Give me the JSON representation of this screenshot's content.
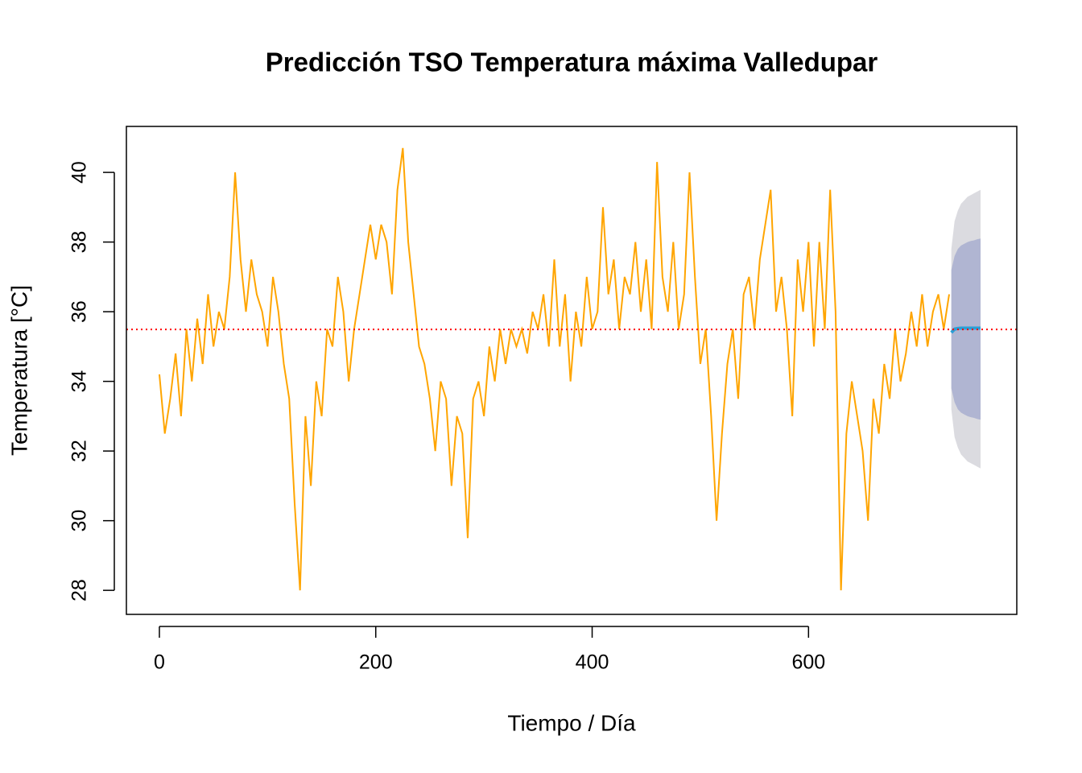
{
  "chart_data": {
    "type": "line",
    "title": "Predicción TSO Temperatura máxima Valledupar",
    "xlabel": "Tiempo / Día",
    "ylabel": "Temperatura [°C]",
    "xlim": [
      -30.5,
      792.5
    ],
    "ylim": [
      27.31,
      41.32
    ],
    "xticks": [
      0,
      200,
      400,
      600
    ],
    "yticks": [
      28,
      30,
      32,
      34,
      36,
      38,
      40
    ],
    "color": "#FFA500",
    "x": [
      0,
      5,
      10,
      15,
      20,
      25,
      30,
      35,
      40,
      45,
      50,
      55,
      60,
      65,
      70,
      75,
      80,
      85,
      90,
      95,
      100,
      105,
      110,
      115,
      120,
      125,
      130,
      135,
      140,
      145,
      150,
      155,
      160,
      165,
      170,
      175,
      180,
      185,
      190,
      195,
      200,
      205,
      210,
      215,
      220,
      225,
      230,
      235,
      240,
      245,
      250,
      255,
      260,
      265,
      270,
      275,
      280,
      285,
      290,
      295,
      300,
      305,
      310,
      315,
      320,
      325,
      330,
      335,
      340,
      345,
      350,
      355,
      360,
      365,
      370,
      375,
      380,
      385,
      390,
      395,
      400,
      405,
      410,
      415,
      420,
      425,
      430,
      435,
      440,
      445,
      450,
      455,
      460,
      465,
      470,
      475,
      480,
      485,
      490,
      495,
      500,
      505,
      510,
      515,
      520,
      525,
      530,
      535,
      540,
      545,
      550,
      555,
      560,
      565,
      570,
      575,
      580,
      585,
      590,
      595,
      600,
      605,
      610,
      615,
      620,
      625,
      630,
      635,
      640,
      645,
      650,
      655,
      660,
      665,
      670,
      675,
      680,
      685,
      690,
      695,
      700,
      705,
      710,
      715,
      720,
      725,
      730
    ],
    "values": [
      34.2,
      32.5,
      33.5,
      34.8,
      33.0,
      35.5,
      34.0,
      35.8,
      34.5,
      36.5,
      35.0,
      36.0,
      35.5,
      37.0,
      40.0,
      37.5,
      36.0,
      37.5,
      36.5,
      36.0,
      35.0,
      37.0,
      36.0,
      34.5,
      33.5,
      30.5,
      28.0,
      33.0,
      31.0,
      34.0,
      33.0,
      35.5,
      35.0,
      37.0,
      36.0,
      34.0,
      35.5,
      36.5,
      37.5,
      38.5,
      37.5,
      38.5,
      38.0,
      36.5,
      39.5,
      40.7,
      38.0,
      36.5,
      35.0,
      34.5,
      33.5,
      32.0,
      34.0,
      33.5,
      31.0,
      33.0,
      32.5,
      29.5,
      33.5,
      34.0,
      33.0,
      35.0,
      34.0,
      35.5,
      34.5,
      35.5,
      35.0,
      35.5,
      34.8,
      36.0,
      35.5,
      36.5,
      35.0,
      37.5,
      35.0,
      36.5,
      34.0,
      36.0,
      35.0,
      37.0,
      35.5,
      36.0,
      39.0,
      36.5,
      37.5,
      35.5,
      37.0,
      36.5,
      38.0,
      36.0,
      37.5,
      35.5,
      40.3,
      37.0,
      36.0,
      38.0,
      35.5,
      36.5,
      40.0,
      37.0,
      34.5,
      35.5,
      33.0,
      30.0,
      32.5,
      34.5,
      35.5,
      33.5,
      36.5,
      37.0,
      35.5,
      37.5,
      38.5,
      39.5,
      36.0,
      37.0,
      35.5,
      33.0,
      37.5,
      36.0,
      38.0,
      35.0,
      38.0,
      35.5,
      39.5,
      36.0,
      28.0,
      32.5,
      34.0,
      33.0,
      32.0,
      30.0,
      33.5,
      32.5,
      34.5,
      33.5,
      35.5,
      34.0,
      34.8,
      36.0,
      35.0,
      36.5,
      35.0,
      36.0,
      36.5,
      35.5,
      36.5
    ],
    "hline": {
      "value": 35.49,
      "color": "#FF0000"
    },
    "forecast": {
      "color": "#2A9FD6",
      "x": [
        732,
        735,
        738,
        741,
        744,
        747,
        750,
        753,
        756,
        759
      ],
      "values": [
        35.4,
        35.5,
        35.52,
        35.53,
        35.53,
        35.53,
        35.53,
        35.53,
        35.53,
        35.53
      ],
      "intervals": [
        {
          "color": "#DBDBE0",
          "lower": [
            33.2,
            32.4,
            32.1,
            31.9,
            31.8,
            31.7,
            31.65,
            31.6,
            31.55,
            31.5
          ],
          "upper": [
            37.8,
            38.6,
            38.9,
            39.1,
            39.2,
            39.3,
            39.35,
            39.4,
            39.45,
            39.5
          ]
        },
        {
          "color": "#B0B5D2",
          "lower": [
            33.8,
            33.4,
            33.2,
            33.1,
            33.05,
            33.0,
            32.97,
            32.95,
            32.92,
            32.9
          ],
          "upper": [
            37.2,
            37.6,
            37.8,
            37.9,
            37.95,
            38.0,
            38.03,
            38.05,
            38.08,
            38.1
          ]
        }
      ]
    }
  }
}
